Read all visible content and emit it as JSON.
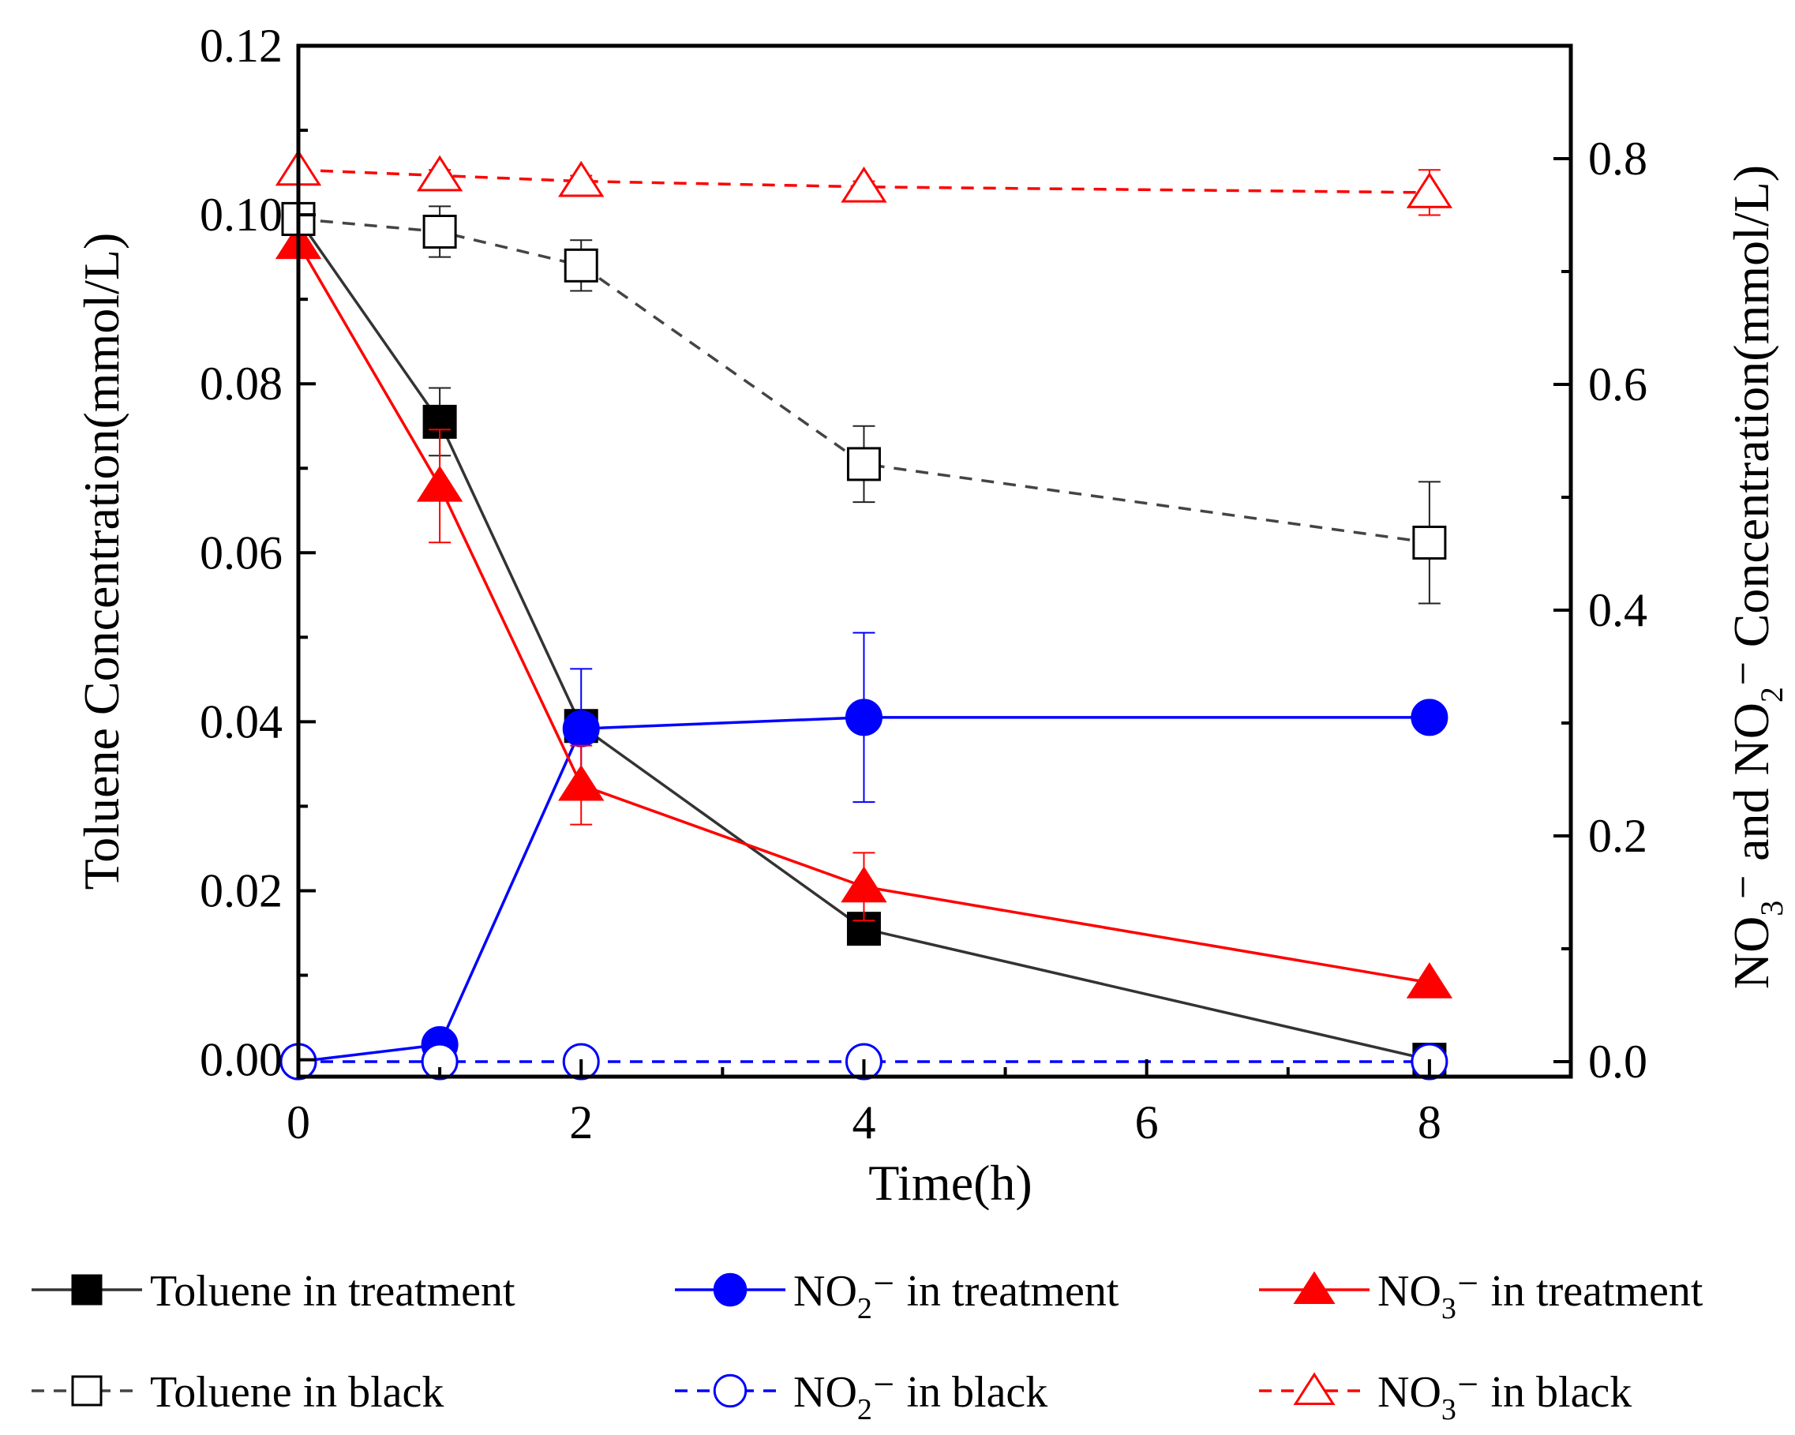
{
  "chart_data": {
    "type": "line",
    "title": "",
    "xlabel": "Time(h)",
    "ylabel_left": "Toluene Concentration(mmol/L)",
    "ylabel_right": {
      "parts": [
        "NO",
        "3",
        "⁻ and NO",
        "2",
        "⁻ Concentration(mmol/L)"
      ]
    },
    "xlim": [
      0,
      9
    ],
    "ylim_left": [
      -0.002,
      0.12
    ],
    "ylim_right": [
      -0.0133,
      0.9
    ],
    "x_ticks": [
      0,
      2,
      4,
      6,
      8
    ],
    "y_left_ticks": [
      "0.00",
      "0.02",
      "0.04",
      "0.06",
      "0.08",
      "0.10",
      "0.12"
    ],
    "y_right_ticks": [
      "0.0",
      "0.2",
      "0.4",
      "0.6",
      "0.8"
    ],
    "grid": false,
    "legend_position": "bottom",
    "series": [
      {
        "name": "Toluene in treatment",
        "legend_parts": [
          "Toluene in treatment"
        ],
        "axis": "left",
        "color": "#333333",
        "dash": false,
        "marker": "square",
        "filled": true,
        "x": [
          0,
          1,
          2,
          4,
          8
        ],
        "y": [
          0.0995,
          0.0755,
          0.0395,
          0.0155,
          0.0
        ],
        "err": [
          0.0015,
          0.004,
          0.0015,
          0.001,
          0.0
        ]
      },
      {
        "name": "NO2⁻ in treatment",
        "legend_parts": [
          "NO",
          "2",
          "⁻ in treatment"
        ],
        "axis": "right",
        "color": "#0000ff",
        "dash": false,
        "marker": "circle",
        "filled": true,
        "x": [
          0,
          1,
          2,
          4,
          8
        ],
        "y": [
          0.0,
          0.015,
          0.295,
          0.305,
          0.305
        ],
        "err": [
          0.0,
          0.0,
          0.053,
          0.075,
          0.008
        ]
      },
      {
        "name": "NO3⁻ in treatment",
        "legend_parts": [
          "NO",
          "3",
          "⁻ in treatment"
        ],
        "axis": "right",
        "color": "#ff0000",
        "dash": false,
        "marker": "triangle",
        "filled": true,
        "x": [
          0,
          1,
          2,
          4,
          8
        ],
        "y": [
          0.725,
          0.51,
          0.245,
          0.155,
          0.07
        ],
        "err": [
          0.0,
          0.05,
          0.035,
          0.03,
          0.0
        ]
      },
      {
        "name": "Toluene in black",
        "legend_parts": [
          "Toluene in black"
        ],
        "axis": "left",
        "color": "#444444",
        "dash": true,
        "marker": "square",
        "filled": false,
        "x": [
          0,
          1,
          2,
          4,
          8
        ],
        "y": [
          0.0995,
          0.098,
          0.094,
          0.0705,
          0.0612
        ],
        "err": [
          0.0005,
          0.003,
          0.003,
          0.0045,
          0.0072
        ]
      },
      {
        "name": "NO2⁻ in black",
        "legend_parts": [
          "NO",
          "2",
          "⁻ in black"
        ],
        "axis": "right",
        "color": "#0000ff",
        "dash": true,
        "marker": "circle",
        "filled": false,
        "x": [
          0,
          1,
          2,
          4,
          8
        ],
        "y": [
          0.0,
          0.0,
          0.0,
          0.0,
          0.0
        ],
        "err": [
          0.0,
          0.0,
          0.0,
          0.0,
          0.0
        ]
      },
      {
        "name": "NO3⁻ in black",
        "legend_parts": [
          "NO",
          "3",
          "⁻ in black"
        ],
        "axis": "right",
        "color": "#ff0000",
        "dash": true,
        "marker": "triangle",
        "filled": false,
        "x": [
          0,
          1,
          2,
          4,
          8
        ],
        "y": [
          0.79,
          0.785,
          0.78,
          0.775,
          0.77
        ],
        "err": [
          0.0,
          0.005,
          0.005,
          0.005,
          0.02
        ]
      }
    ]
  }
}
